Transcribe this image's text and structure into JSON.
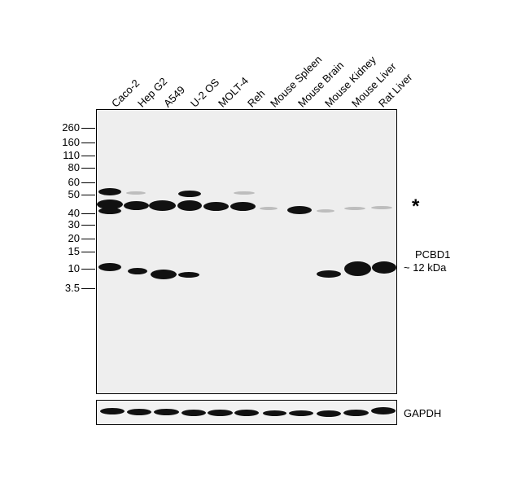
{
  "lanes": [
    "Caco-2",
    "Hep G2",
    "A549",
    "U-2 OS",
    "MOLT-4",
    "Reh",
    "Mouse Spleen",
    "Mouse Brain",
    "Mouse Kidney",
    "Mouse Liver",
    "Rat Liver"
  ],
  "mw_markers": [
    "260",
    "160",
    "110",
    "80",
    "60",
    "50",
    "40",
    "30",
    "20",
    "15",
    "10",
    "3.5"
  ],
  "annotations": {
    "asterisk": "*",
    "target_name": "PCBD1",
    "target_size": "~ 12 kDa",
    "loading_control": "GAPDH"
  }
}
